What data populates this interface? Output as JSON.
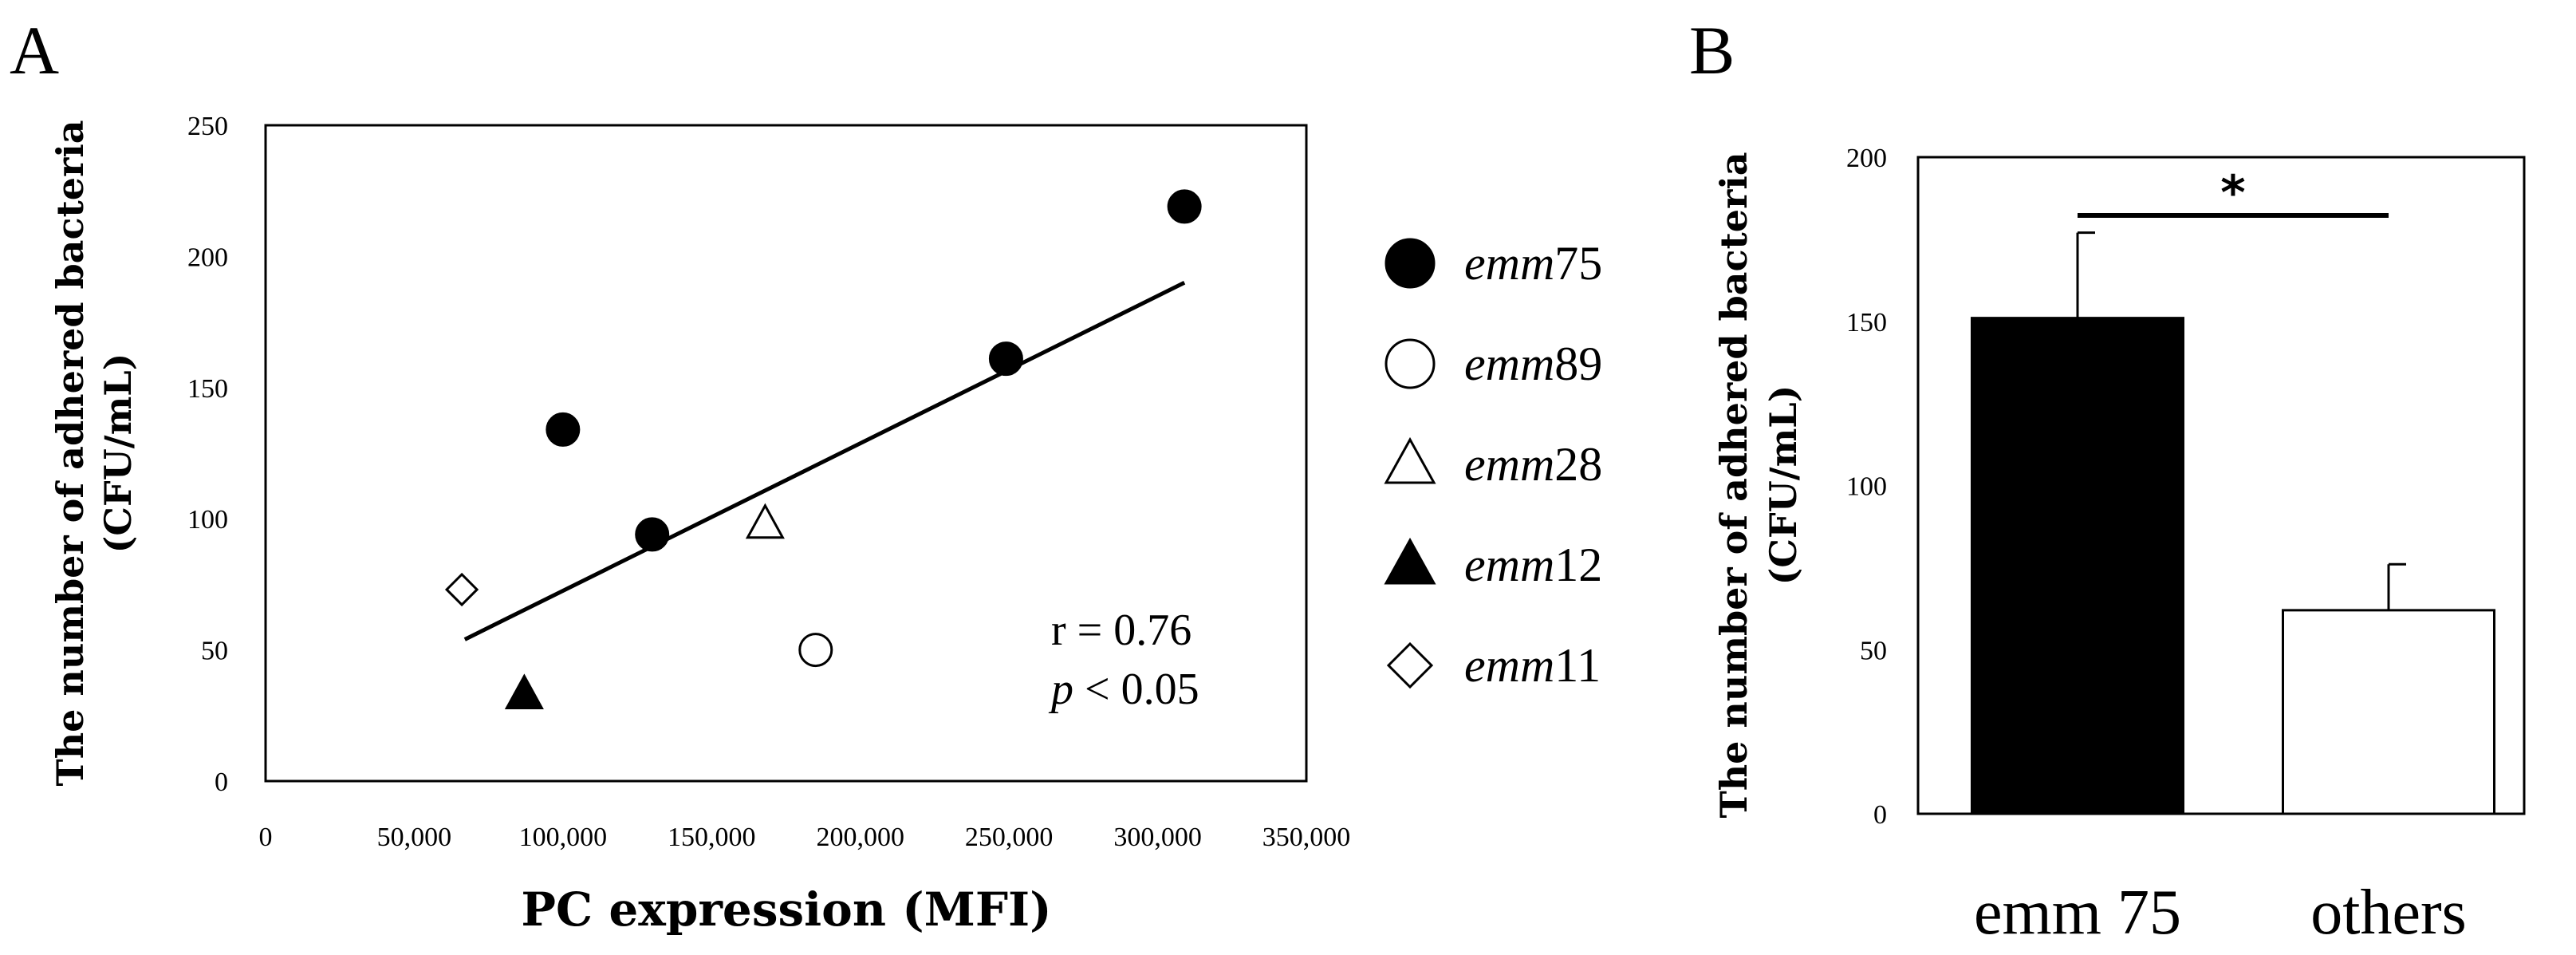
{
  "panels": {
    "a": "A",
    "b": "B"
  },
  "chart_data": [
    {
      "type": "scatter",
      "panel": "A",
      "title": "",
      "xlabel": "PC expression (MFI)",
      "ylabel_line1": "The number of adhered bacteria",
      "ylabel_line2": "(CFU/mL)",
      "xlim": [
        0,
        350000
      ],
      "ylim": [
        0,
        250
      ],
      "x_ticks": [
        0,
        50000,
        100000,
        150000,
        200000,
        250000,
        300000,
        350000
      ],
      "x_tick_labels": [
        "0",
        "50,000",
        "100,000",
        "150,000",
        "200,000",
        "250,000",
        "300,000",
        "350,000"
      ],
      "y_ticks": [
        0,
        50,
        100,
        150,
        200,
        250
      ],
      "y_tick_labels": [
        "0",
        "50",
        "100",
        "150",
        "200",
        "250"
      ],
      "grid": false,
      "series": [
        {
          "name": "emm75",
          "prefix": "emm",
          "suffix": "75",
          "marker": "circle",
          "filled": true,
          "points": [
            {
              "x": 100000,
              "y": 134
            },
            {
              "x": 130000,
              "y": 94
            },
            {
              "x": 249000,
              "y": 161
            },
            {
              "x": 309000,
              "y": 219
            }
          ]
        },
        {
          "name": "emm89",
          "prefix": "emm",
          "suffix": "89",
          "marker": "circle",
          "filled": false,
          "points": [
            {
              "x": 185000,
              "y": 50
            }
          ]
        },
        {
          "name": "emm28",
          "prefix": "emm",
          "suffix": "28",
          "marker": "triangle",
          "filled": false,
          "points": [
            {
              "x": 168000,
              "y": 98
            }
          ]
        },
        {
          "name": "emm12",
          "prefix": "emm",
          "suffix": "12",
          "marker": "triangle",
          "filled": true,
          "points": [
            {
              "x": 87000,
              "y": 33
            }
          ]
        },
        {
          "name": "emm11",
          "prefix": "emm",
          "suffix": "11",
          "marker": "diamond",
          "filled": false,
          "points": [
            {
              "x": 66000,
              "y": 73
            }
          ]
        }
      ],
      "trendline": {
        "x_start": 67000,
        "y_start": 54,
        "x_end": 309000,
        "y_end": 190
      },
      "annotation": {
        "r_text": "r = 0.76",
        "p_symbol": "p",
        "p_rest": " < 0.05"
      },
      "legend_position": "right"
    },
    {
      "type": "bar",
      "panel": "B",
      "title": "",
      "xlabel": "",
      "ylabel_line1": "The number of adhered bacteria",
      "ylabel_line2": "(CFU/mL)",
      "ylim": [
        0,
        200
      ],
      "y_ticks": [
        0,
        50,
        100,
        150,
        200
      ],
      "y_tick_labels": [
        "0",
        "50",
        "100",
        "150",
        "200"
      ],
      "categories": [
        "emm 75",
        "others"
      ],
      "values": [
        151,
        62
      ],
      "errors": [
        26,
        14
      ],
      "bar_colors": [
        "#000000",
        "#ffffff"
      ],
      "significance": {
        "label": "*",
        "between": [
          0,
          1
        ]
      },
      "grid": false
    }
  ]
}
